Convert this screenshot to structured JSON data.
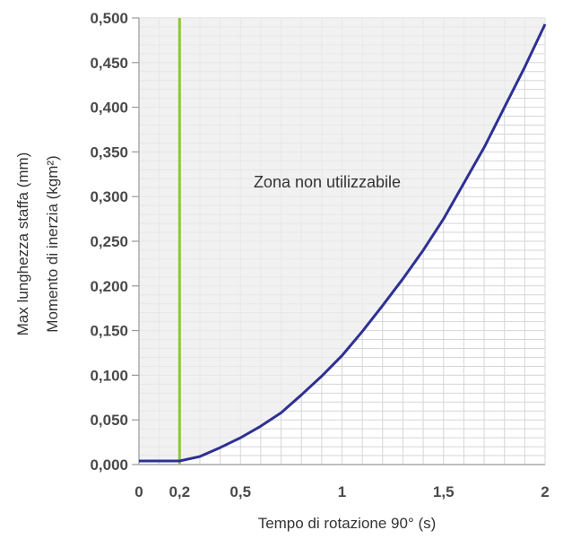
{
  "chart_data": {
    "type": "line",
    "x": [
      0,
      0.2,
      0.3,
      0.4,
      0.5,
      0.6,
      0.7,
      0.8,
      0.9,
      1.0,
      1.1,
      1.2,
      1.3,
      1.4,
      1.5,
      1.6,
      1.7,
      1.8,
      1.9,
      2.0
    ],
    "series": [
      {
        "values": [
          0.004,
          0.004,
          0.009,
          0.019,
          0.03,
          0.043,
          0.058,
          0.078,
          0.099,
          0.122,
          0.149,
          0.178,
          0.208,
          0.24,
          0.275,
          0.315,
          0.355,
          0.4,
          0.445,
          0.493
        ]
      }
    ],
    "xlim": [
      0,
      2
    ],
    "ylim": [
      0,
      0.5
    ],
    "xticks": [
      0,
      0.2,
      0.5,
      1,
      1.5,
      2
    ],
    "xtick_labels": [
      "0",
      "0,2",
      "0,5",
      "1",
      "1,5",
      "2"
    ],
    "yticks": [
      0,
      0.05,
      0.1,
      0.15,
      0.2,
      0.25,
      0.3,
      0.35,
      0.4,
      0.45,
      0.5
    ],
    "ytick_labels": [
      "0,000",
      "0,050",
      "0,100",
      "0,150",
      "0,200",
      "0,250",
      "0,300",
      "0,350",
      "0,400",
      "0,450",
      "0,500"
    ],
    "xlabel": "Tempo di rotazione 90° (s)",
    "ylabel": "Max lunghezza staffa (mm)",
    "ylabel2": "Momento di inerzia (kgm²)",
    "vline_x": 0.2,
    "annotation": "Zona non utilizzabile",
    "grid": true,
    "colors": {
      "curve": "#2e3192",
      "vline": "#8dc63f",
      "fill": "#ececee",
      "grid": "#d6d6d6",
      "axis": "#9a9a9a"
    }
  }
}
